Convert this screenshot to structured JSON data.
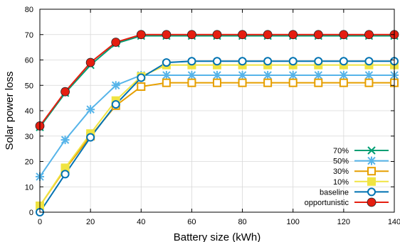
{
  "chart_data": {
    "type": "line",
    "xlabel": "Battery size (kWh)",
    "ylabel": "Solar power loss",
    "xlim": [
      0,
      140
    ],
    "ylim": [
      0,
      80
    ],
    "xticks": [
      0,
      20,
      40,
      60,
      80,
      100,
      120,
      140
    ],
    "yticks": [
      0,
      10,
      20,
      30,
      40,
      50,
      60,
      70,
      80
    ],
    "grid": true,
    "legend_position": "bottom-right",
    "x": [
      0,
      10,
      20,
      30,
      40,
      50,
      60,
      70,
      80,
      90,
      100,
      110,
      120,
      130,
      140
    ],
    "series": [
      {
        "name": "70%",
        "color": "#009e73",
        "marker": "x-icon",
        "values": [
          33.5,
          47,
          58,
          66.5,
          69.5,
          69.5,
          69.5,
          69.5,
          69.5,
          69.5,
          69.5,
          69.5,
          69.5,
          69.5,
          69.5
        ]
      },
      {
        "name": "50%",
        "color": "#56b4e9",
        "marker": "star-icon",
        "values": [
          14,
          28.5,
          40.5,
          50,
          54,
          54,
          54,
          54,
          54,
          54,
          54,
          54,
          54,
          54,
          54
        ]
      },
      {
        "name": "30%",
        "color": "#e69f00",
        "marker": "open-square-icon",
        "values": [
          2.5,
          17,
          30,
          42,
          49.5,
          51,
          51,
          51,
          51,
          51,
          51,
          51,
          51,
          51,
          51
        ]
      },
      {
        "name": "10%",
        "color": "#f0e442",
        "marker": "filled-square-icon",
        "values": [
          2.5,
          17.5,
          31,
          44,
          53.5,
          58,
          58,
          58,
          58,
          58,
          58,
          58,
          58,
          58,
          58
        ]
      },
      {
        "name": "baseline",
        "color": "#0072b2",
        "marker": "open-circle-icon",
        "values": [
          0,
          15,
          29.5,
          42.5,
          53,
          59,
          59.5,
          59.5,
          59.5,
          59.5,
          59.5,
          59.5,
          59.5,
          59.5,
          59.5
        ]
      },
      {
        "name": "opportunistic",
        "color": "#e51e10",
        "marker": "filled-circle-icon",
        "values": [
          34,
          47.5,
          59,
          67,
          70,
          70,
          70,
          70,
          70,
          70,
          70,
          70,
          70,
          70,
          70
        ]
      }
    ]
  }
}
